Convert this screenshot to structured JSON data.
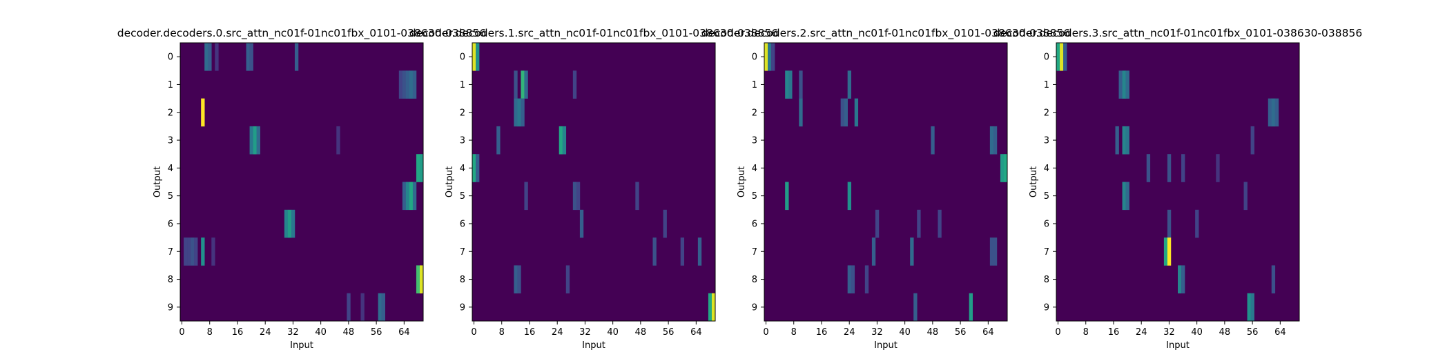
{
  "chart_data": [
    {
      "type": "heatmap",
      "title": "decoder.decoders.0.src_attn_nc01f-01nc01fbx_0101-038630-038856",
      "xlabel": "Input",
      "ylabel": "Output",
      "x_ticks": [
        0,
        8,
        16,
        24,
        32,
        40,
        48,
        56,
        64
      ],
      "y_ticks": [
        0,
        1,
        2,
        3,
        4,
        5,
        6,
        7,
        8,
        9
      ],
      "xlim": [
        0,
        70
      ],
      "ylim": [
        0,
        10
      ],
      "colormap": "viridis",
      "hot_cells": [
        {
          "row": 0,
          "col": 7,
          "v": 0.35
        },
        {
          "row": 0,
          "col": 8,
          "v": 0.3
        },
        {
          "row": 0,
          "col": 10,
          "v": 0.15
        },
        {
          "row": 0,
          "col": 19,
          "v": 0.3
        },
        {
          "row": 0,
          "col": 20,
          "v": 0.25
        },
        {
          "row": 0,
          "col": 33,
          "v": 0.3
        },
        {
          "row": 1,
          "col": 63,
          "v": 0.2
        },
        {
          "row": 1,
          "col": 64,
          "v": 0.25
        },
        {
          "row": 1,
          "col": 65,
          "v": 0.3
        },
        {
          "row": 1,
          "col": 66,
          "v": 0.35
        },
        {
          "row": 1,
          "col": 67,
          "v": 0.3
        },
        {
          "row": 2,
          "col": 6,
          "v": 1.0
        },
        {
          "row": 3,
          "col": 20,
          "v": 0.4
        },
        {
          "row": 3,
          "col": 21,
          "v": 0.55
        },
        {
          "row": 3,
          "col": 22,
          "v": 0.35
        },
        {
          "row": 3,
          "col": 45,
          "v": 0.15
        },
        {
          "row": 4,
          "col": 68,
          "v": 0.6
        },
        {
          "row": 4,
          "col": 69,
          "v": 0.55
        },
        {
          "row": 5,
          "col": 64,
          "v": 0.3
        },
        {
          "row": 5,
          "col": 65,
          "v": 0.45
        },
        {
          "row": 5,
          "col": 66,
          "v": 0.6
        },
        {
          "row": 5,
          "col": 67,
          "v": 0.35
        },
        {
          "row": 6,
          "col": 30,
          "v": 0.45
        },
        {
          "row": 6,
          "col": 31,
          "v": 0.55
        },
        {
          "row": 6,
          "col": 32,
          "v": 0.4
        },
        {
          "row": 7,
          "col": 1,
          "v": 0.2
        },
        {
          "row": 7,
          "col": 2,
          "v": 0.2
        },
        {
          "row": 7,
          "col": 3,
          "v": 0.25
        },
        {
          "row": 7,
          "col": 4,
          "v": 0.2
        },
        {
          "row": 7,
          "col": 6,
          "v": 0.5
        },
        {
          "row": 7,
          "col": 9,
          "v": 0.15
        },
        {
          "row": 8,
          "col": 68,
          "v": 0.7
        },
        {
          "row": 8,
          "col": 69,
          "v": 0.95
        },
        {
          "row": 9,
          "col": 48,
          "v": 0.2
        },
        {
          "row": 9,
          "col": 52,
          "v": 0.15
        },
        {
          "row": 9,
          "col": 57,
          "v": 0.35
        },
        {
          "row": 9,
          "col": 58,
          "v": 0.3
        }
      ]
    },
    {
      "type": "heatmap",
      "title": "decoder.decoders.1.src_attn_nc01f-01nc01fbx_0101-038630-038856",
      "xlabel": "Input",
      "ylabel": "Output",
      "x_ticks": [
        0,
        8,
        16,
        24,
        32,
        40,
        48,
        56,
        64
      ],
      "y_ticks": [
        0,
        1,
        2,
        3,
        4,
        5,
        6,
        7,
        8,
        9
      ],
      "xlim": [
        0,
        70
      ],
      "ylim": [
        0,
        10
      ],
      "colormap": "viridis",
      "hot_cells": [
        {
          "row": 0,
          "col": 0,
          "v": 0.95
        },
        {
          "row": 0,
          "col": 1,
          "v": 0.5
        },
        {
          "row": 1,
          "col": 12,
          "v": 0.25
        },
        {
          "row": 1,
          "col": 14,
          "v": 0.65
        },
        {
          "row": 1,
          "col": 15,
          "v": 0.35
        },
        {
          "row": 1,
          "col": 29,
          "v": 0.2
        },
        {
          "row": 2,
          "col": 12,
          "v": 0.35
        },
        {
          "row": 2,
          "col": 13,
          "v": 0.4
        },
        {
          "row": 2,
          "col": 14,
          "v": 0.3
        },
        {
          "row": 3,
          "col": 7,
          "v": 0.3
        },
        {
          "row": 3,
          "col": 25,
          "v": 0.6
        },
        {
          "row": 3,
          "col": 26,
          "v": 0.45
        },
        {
          "row": 4,
          "col": 0,
          "v": 0.6
        },
        {
          "row": 4,
          "col": 1,
          "v": 0.3
        },
        {
          "row": 5,
          "col": 15,
          "v": 0.2
        },
        {
          "row": 5,
          "col": 29,
          "v": 0.25
        },
        {
          "row": 5,
          "col": 30,
          "v": 0.2
        },
        {
          "row": 5,
          "col": 47,
          "v": 0.2
        },
        {
          "row": 6,
          "col": 31,
          "v": 0.3
        },
        {
          "row": 6,
          "col": 55,
          "v": 0.2
        },
        {
          "row": 7,
          "col": 52,
          "v": 0.25
        },
        {
          "row": 7,
          "col": 60,
          "v": 0.2
        },
        {
          "row": 7,
          "col": 65,
          "v": 0.3
        },
        {
          "row": 8,
          "col": 12,
          "v": 0.3
        },
        {
          "row": 8,
          "col": 13,
          "v": 0.25
        },
        {
          "row": 8,
          "col": 27,
          "v": 0.2
        },
        {
          "row": 9,
          "col": 68,
          "v": 0.6
        },
        {
          "row": 9,
          "col": 69,
          "v": 0.95
        }
      ]
    },
    {
      "type": "heatmap",
      "title": "decoder.decoders.2.src_attn_nc01f-01nc01fbx_0101-038630-038856",
      "xlabel": "Input",
      "ylabel": "Output",
      "x_ticks": [
        0,
        8,
        16,
        24,
        32,
        40,
        48,
        56,
        64
      ],
      "y_ticks": [
        0,
        1,
        2,
        3,
        4,
        5,
        6,
        7,
        8,
        9
      ],
      "xlim": [
        0,
        70
      ],
      "ylim": [
        0,
        10
      ],
      "colormap": "viridis",
      "hot_cells": [
        {
          "row": 0,
          "col": 0,
          "v": 0.95
        },
        {
          "row": 0,
          "col": 1,
          "v": 0.4
        },
        {
          "row": 0,
          "col": 2,
          "v": 0.2
        },
        {
          "row": 1,
          "col": 6,
          "v": 0.45
        },
        {
          "row": 1,
          "col": 7,
          "v": 0.4
        },
        {
          "row": 1,
          "col": 10,
          "v": 0.25
        },
        {
          "row": 1,
          "col": 24,
          "v": 0.35
        },
        {
          "row": 2,
          "col": 10,
          "v": 0.35
        },
        {
          "row": 2,
          "col": 22,
          "v": 0.25
        },
        {
          "row": 2,
          "col": 23,
          "v": 0.3
        },
        {
          "row": 2,
          "col": 26,
          "v": 0.4
        },
        {
          "row": 3,
          "col": 48,
          "v": 0.3
        },
        {
          "row": 3,
          "col": 65,
          "v": 0.35
        },
        {
          "row": 3,
          "col": 66,
          "v": 0.3
        },
        {
          "row": 4,
          "col": 68,
          "v": 0.55
        },
        {
          "row": 4,
          "col": 69,
          "v": 0.6
        },
        {
          "row": 5,
          "col": 6,
          "v": 0.55
        },
        {
          "row": 5,
          "col": 24,
          "v": 0.5
        },
        {
          "row": 6,
          "col": 32,
          "v": 0.2
        },
        {
          "row": 6,
          "col": 44,
          "v": 0.2
        },
        {
          "row": 6,
          "col": 50,
          "v": 0.2
        },
        {
          "row": 7,
          "col": 31,
          "v": 0.3
        },
        {
          "row": 7,
          "col": 42,
          "v": 0.35
        },
        {
          "row": 7,
          "col": 65,
          "v": 0.25
        },
        {
          "row": 7,
          "col": 66,
          "v": 0.25
        },
        {
          "row": 8,
          "col": 24,
          "v": 0.3
        },
        {
          "row": 8,
          "col": 25,
          "v": 0.25
        },
        {
          "row": 8,
          "col": 29,
          "v": 0.2
        },
        {
          "row": 9,
          "col": 43,
          "v": 0.3
        },
        {
          "row": 9,
          "col": 59,
          "v": 0.55
        }
      ]
    },
    {
      "type": "heatmap",
      "title": "decoder.decoders.3.src_attn_nc01f-01nc01fbx_0101-038630-038856",
      "xlabel": "Input",
      "ylabel": "Output",
      "x_ticks": [
        0,
        8,
        16,
        24,
        32,
        40,
        48,
        56,
        64
      ],
      "y_ticks": [
        0,
        1,
        2,
        3,
        4,
        5,
        6,
        7,
        8,
        9
      ],
      "xlim": [
        0,
        70
      ],
      "ylim": [
        0,
        10
      ],
      "colormap": "viridis",
      "hot_cells": [
        {
          "row": 0,
          "col": 0,
          "v": 0.6
        },
        {
          "row": 0,
          "col": 1,
          "v": 0.95
        },
        {
          "row": 0,
          "col": 2,
          "v": 0.3
        },
        {
          "row": 1,
          "col": 18,
          "v": 0.3
        },
        {
          "row": 1,
          "col": 19,
          "v": 0.45
        },
        {
          "row": 1,
          "col": 20,
          "v": 0.35
        },
        {
          "row": 2,
          "col": 61,
          "v": 0.3
        },
        {
          "row": 2,
          "col": 62,
          "v": 0.35
        },
        {
          "row": 2,
          "col": 63,
          "v": 0.3
        },
        {
          "row": 3,
          "col": 17,
          "v": 0.3
        },
        {
          "row": 3,
          "col": 19,
          "v": 0.45
        },
        {
          "row": 3,
          "col": 20,
          "v": 0.4
        },
        {
          "row": 3,
          "col": 56,
          "v": 0.2
        },
        {
          "row": 4,
          "col": 26,
          "v": 0.25
        },
        {
          "row": 4,
          "col": 32,
          "v": 0.25
        },
        {
          "row": 4,
          "col": 36,
          "v": 0.2
        },
        {
          "row": 4,
          "col": 46,
          "v": 0.15
        },
        {
          "row": 5,
          "col": 19,
          "v": 0.45
        },
        {
          "row": 5,
          "col": 20,
          "v": 0.35
        },
        {
          "row": 5,
          "col": 54,
          "v": 0.2
        },
        {
          "row": 6,
          "col": 32,
          "v": 0.25
        },
        {
          "row": 6,
          "col": 40,
          "v": 0.2
        },
        {
          "row": 7,
          "col": 31,
          "v": 0.6
        },
        {
          "row": 7,
          "col": 32,
          "v": 1.0
        },
        {
          "row": 8,
          "col": 35,
          "v": 0.45
        },
        {
          "row": 8,
          "col": 36,
          "v": 0.3
        },
        {
          "row": 8,
          "col": 62,
          "v": 0.25
        },
        {
          "row": 9,
          "col": 55,
          "v": 0.5
        },
        {
          "row": 9,
          "col": 56,
          "v": 0.4
        }
      ]
    }
  ]
}
